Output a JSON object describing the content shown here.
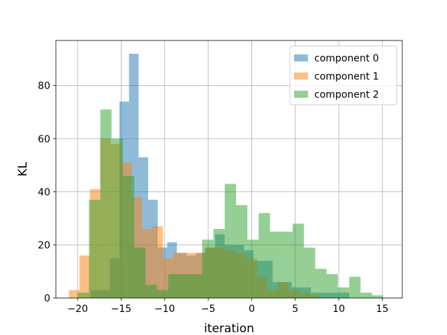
{
  "chart_data": {
    "type": "histogram",
    "title": "",
    "xlabel": "iteration",
    "ylabel": "KL",
    "xlim": [
      -22.5,
      17.3
    ],
    "ylim": [
      0,
      97
    ],
    "xticks": [
      -20,
      -15,
      -10,
      -5,
      0,
      5,
      10,
      15
    ],
    "yticks": [
      0,
      20,
      40,
      60,
      80
    ],
    "grid": true,
    "legend_position": "top-right",
    "series": [
      {
        "name": "component 0",
        "color": "#1f77b4",
        "bins": [
          {
            "x0": -18.5,
            "x1": -17.4,
            "y": 3
          },
          {
            "x0": -17.4,
            "x1": -16.3,
            "y": 3
          },
          {
            "x0": -16.3,
            "x1": -15.2,
            "y": 15
          },
          {
            "x0": -15.2,
            "x1": -14.1,
            "y": 74
          },
          {
            "x0": -14.1,
            "x1": -13.0,
            "y": 92
          },
          {
            "x0": -13.0,
            "x1": -11.9,
            "y": 53
          },
          {
            "x0": -11.9,
            "x1": -10.8,
            "y": 37
          },
          {
            "x0": -10.8,
            "x1": -9.7,
            "y": 19
          },
          {
            "x0": -9.7,
            "x1": -8.6,
            "y": 21
          },
          {
            "x0": -8.6,
            "x1": -7.5,
            "y": 17
          },
          {
            "x0": -7.5,
            "x1": -6.4,
            "y": 16
          },
          {
            "x0": -6.4,
            "x1": -5.3,
            "y": 17
          },
          {
            "x0": -5.3,
            "x1": -4.2,
            "y": 19
          },
          {
            "x0": -4.2,
            "x1": -3.1,
            "y": 24
          },
          {
            "x0": -3.1,
            "x1": -2.0,
            "y": 20
          },
          {
            "x0": -2.0,
            "x1": -0.9,
            "y": 20
          },
          {
            "x0": -0.9,
            "x1": 0.2,
            "y": 18
          },
          {
            "x0": 0.2,
            "x1": 1.3,
            "y": 14
          },
          {
            "x0": 1.3,
            "x1": 2.4,
            "y": 14
          },
          {
            "x0": 2.4,
            "x1": 3.5,
            "y": 6
          },
          {
            "x0": 3.5,
            "x1": 4.6,
            "y": 6
          },
          {
            "x0": 4.6,
            "x1": 5.7,
            "y": 4
          },
          {
            "x0": 5.7,
            "x1": 6.8,
            "y": 4
          },
          {
            "x0": 6.8,
            "x1": 7.9,
            "y": 2
          },
          {
            "x0": 7.9,
            "x1": 9.0,
            "y": 2
          },
          {
            "x0": 9.0,
            "x1": 10.1,
            "y": 2
          },
          {
            "x0": 10.1,
            "x1": 11.2,
            "y": 2
          }
        ]
      },
      {
        "name": "component 1",
        "color": "#ff7f0e",
        "bins": [
          {
            "x0": -21.0,
            "x1": -19.8,
            "y": 3
          },
          {
            "x0": -19.8,
            "x1": -18.6,
            "y": 16
          },
          {
            "x0": -18.6,
            "x1": -17.4,
            "y": 41
          },
          {
            "x0": -17.4,
            "x1": -16.2,
            "y": 60
          },
          {
            "x0": -16.2,
            "x1": -15.0,
            "y": 58
          },
          {
            "x0": -15.0,
            "x1": -13.8,
            "y": 51
          },
          {
            "x0": -13.8,
            "x1": -12.6,
            "y": 38
          },
          {
            "x0": -12.6,
            "x1": -11.4,
            "y": 26
          },
          {
            "x0": -11.4,
            "x1": -10.2,
            "y": 27
          },
          {
            "x0": -10.2,
            "x1": -9.0,
            "y": 15
          },
          {
            "x0": -9.0,
            "x1": -7.8,
            "y": 17
          },
          {
            "x0": -7.8,
            "x1": -6.6,
            "y": 17
          },
          {
            "x0": -6.6,
            "x1": -5.4,
            "y": 17
          },
          {
            "x0": -5.4,
            "x1": -4.2,
            "y": 19
          },
          {
            "x0": -4.2,
            "x1": -3.0,
            "y": 19
          },
          {
            "x0": -3.0,
            "x1": -1.8,
            "y": 18
          },
          {
            "x0": -1.8,
            "x1": -0.6,
            "y": 17
          },
          {
            "x0": -0.6,
            "x1": 0.6,
            "y": 15
          },
          {
            "x0": 0.6,
            "x1": 1.8,
            "y": 8
          },
          {
            "x0": 1.8,
            "x1": 3.0,
            "y": 3
          },
          {
            "x0": 3.0,
            "x1": 4.2,
            "y": 6
          },
          {
            "x0": 4.2,
            "x1": 5.4,
            "y": 3
          },
          {
            "x0": 5.4,
            "x1": 6.6,
            "y": 2
          },
          {
            "x0": 6.6,
            "x1": 7.8,
            "y": 1
          }
        ]
      },
      {
        "name": "component 2",
        "color": "#2ca02c",
        "bins": [
          {
            "x0": -20.0,
            "x1": -18.7,
            "y": 2
          },
          {
            "x0": -18.7,
            "x1": -17.4,
            "y": 37
          },
          {
            "x0": -17.4,
            "x1": -16.1,
            "y": 71
          },
          {
            "x0": -16.1,
            "x1": -14.8,
            "y": 60
          },
          {
            "x0": -14.8,
            "x1": -13.5,
            "y": 46
          },
          {
            "x0": -13.5,
            "x1": -12.2,
            "y": 19
          },
          {
            "x0": -12.2,
            "x1": -10.9,
            "y": 5
          },
          {
            "x0": -10.9,
            "x1": -9.6,
            "y": 3
          },
          {
            "x0": -9.6,
            "x1": -8.3,
            "y": 9
          },
          {
            "x0": -8.3,
            "x1": -7.0,
            "y": 9
          },
          {
            "x0": -7.0,
            "x1": -5.7,
            "y": 9
          },
          {
            "x0": -5.7,
            "x1": -4.4,
            "y": 22
          },
          {
            "x0": -4.4,
            "x1": -3.1,
            "y": 26
          },
          {
            "x0": -3.1,
            "x1": -1.8,
            "y": 43
          },
          {
            "x0": -1.8,
            "x1": -0.5,
            "y": 35
          },
          {
            "x0": -0.5,
            "x1": 0.8,
            "y": 22
          },
          {
            "x0": 0.8,
            "x1": 2.1,
            "y": 32
          },
          {
            "x0": 2.1,
            "x1": 3.4,
            "y": 25
          },
          {
            "x0": 3.4,
            "x1": 4.7,
            "y": 25
          },
          {
            "x0": 4.7,
            "x1": 6.0,
            "y": 28
          },
          {
            "x0": 6.0,
            "x1": 7.3,
            "y": 19
          },
          {
            "x0": 7.3,
            "x1": 8.6,
            "y": 11
          },
          {
            "x0": 8.6,
            "x1": 9.9,
            "y": 9
          },
          {
            "x0": 9.9,
            "x1": 11.2,
            "y": 4
          },
          {
            "x0": 11.2,
            "x1": 12.5,
            "y": 8
          },
          {
            "x0": 12.5,
            "x1": 13.8,
            "y": 2
          },
          {
            "x0": 13.8,
            "x1": 15.1,
            "y": 1
          }
        ]
      }
    ]
  }
}
